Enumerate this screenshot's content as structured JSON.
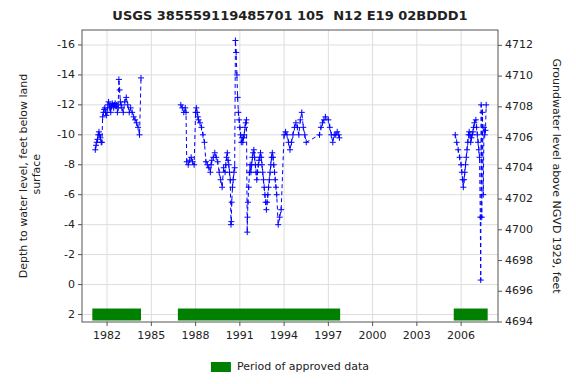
{
  "chart_data": {
    "type": "line",
    "title": "USGS 385559119485701 105  N12 E19 02BDDD1",
    "y_label": "Depth to water level, feet below land\n surface",
    "y2_label": "Groundwater level above NGVD 1929, feet",
    "xlim": [
      1980.3,
      2008.5
    ],
    "xticks": [
      1982,
      1985,
      1988,
      1991,
      1994,
      1997,
      2000,
      2003,
      2006
    ],
    "ylim": [
      2.5,
      -17.0
    ],
    "yticks": [
      2,
      0,
      -2,
      -4,
      -6,
      -8,
      -10,
      -12,
      -14,
      -16
    ],
    "y2lim": [
      4694.0,
      4713.0
    ],
    "y2ticks": [
      4694,
      4696,
      4698,
      4700,
      4702,
      4704,
      4706,
      4708,
      4710,
      4712
    ],
    "grid": true,
    "legend": "bottom",
    "x": [
      1981.2,
      1981.25,
      1981.3,
      1981.35,
      1981.4,
      1981.45,
      1981.5,
      1981.55,
      1981.6,
      1981.65,
      1981.7,
      1981.75,
      1981.8,
      1981.85,
      1981.9,
      1981.95,
      1982.0,
      1982.05,
      1982.1,
      1982.15,
      1982.2,
      1982.25,
      1982.3,
      1982.35,
      1982.4,
      1982.45,
      1982.5,
      1982.55,
      1982.6,
      1982.65,
      1982.7,
      1982.75,
      1982.8,
      1982.85,
      1982.9,
      1982.95,
      1983.0,
      1983.1,
      1983.2,
      1983.3,
      1983.4,
      1983.5,
      1983.6,
      1983.7,
      1983.8,
      1983.9,
      1984.0,
      1984.1,
      1984.2,
      1984.3,
      null,
      1987.0,
      1987.1,
      1987.2,
      1987.3,
      1987.35,
      1987.4,
      1987.5,
      1987.6,
      1987.7,
      1987.8,
      1987.9,
      1988.0,
      1988.05,
      1988.1,
      1988.15,
      1988.2,
      1988.3,
      1988.4,
      1988.5,
      1988.6,
      1988.7,
      1988.8,
      1988.9,
      1989.0,
      1989.05,
      1989.1,
      1989.2,
      1989.3,
      1989.4,
      1989.5,
      1989.6,
      1989.7,
      1989.8,
      1989.9,
      1990.0,
      1990.05,
      1990.1,
      1990.15,
      1990.2,
      1990.25,
      1990.3,
      1990.35,
      1990.4,
      1990.42,
      1990.45,
      1990.5,
      1990.55,
      1990.6,
      1990.65,
      1990.7,
      1990.75,
      1990.8,
      1990.85,
      1990.9,
      1990.95,
      1991.0,
      1991.05,
      1991.1,
      1991.15,
      1991.2,
      1991.25,
      1991.3,
      1991.35,
      1991.4,
      1991.45,
      1991.5,
      1991.52,
      1991.55,
      1991.6,
      1991.65,
      1991.7,
      1991.75,
      1991.8,
      1991.85,
      1991.9,
      1991.95,
      1992.0,
      1992.05,
      1992.1,
      1992.15,
      1992.2,
      1992.25,
      1992.3,
      1992.35,
      1992.4,
      1992.45,
      1992.5,
      1992.55,
      1992.6,
      1992.65,
      1992.7,
      1992.75,
      1992.8,
      1992.85,
      1992.9,
      1992.95,
      1993.0,
      1993.05,
      1993.1,
      1993.15,
      1993.2,
      1993.25,
      1993.3,
      1993.35,
      1993.4,
      1993.45,
      1993.5,
      1993.6,
      1993.7,
      1993.8,
      1994.0,
      1994.1,
      1994.2,
      1994.3,
      1994.4,
      1994.5,
      1994.6,
      1994.7,
      1994.8,
      1994.9,
      1995.0,
      1995.1,
      1995.2,
      1995.3,
      1995.4,
      1995.5,
      1996.4,
      1996.5,
      1996.6,
      1996.7,
      1996.8,
      1997.0,
      1997.1,
      1997.2,
      1997.3,
      1997.4,
      1997.5,
      1997.6,
      1997.7,
      1997.75,
      null,
      2005.6,
      2005.7,
      2005.8,
      2005.9,
      2006.0,
      2006.05,
      2006.1,
      2006.15,
      2006.2,
      2006.25,
      2006.3,
      2006.35,
      2006.4,
      2006.45,
      2006.5,
      2006.55,
      2006.6,
      2006.65,
      2006.7,
      2006.75,
      2006.8,
      2006.85,
      2006.9,
      2007.0,
      2007.05,
      2007.1,
      2007.15,
      2007.2,
      2007.25,
      2007.3,
      2007.33,
      2007.36,
      2007.4,
      2007.45,
      2007.5,
      2007.55,
      2007.6,
      2007.65,
      2007.7
    ],
    "series": [
      {
        "type": "line",
        "color": "#0000ff",
        "line_style": "dashed",
        "marker": "plus",
        "values": [
          -9.0,
          -9.3,
          -9.5,
          -9.7,
          -10.0,
          -10.2,
          -10.0,
          -9.8,
          -9.5,
          -9.5,
          -11.2,
          -11.5,
          -11.7,
          -11.8,
          -11.5,
          -11.3,
          -11.5,
          -12.0,
          -12.2,
          -11.8,
          -12.0,
          -11.5,
          -11.9,
          -12.1,
          -12.0,
          -11.8,
          -12.0,
          -12.1,
          -11.9,
          -12.0,
          -11.5,
          -11.8,
          -13.7,
          -13.0,
          -12.2,
          -12.0,
          -11.8,
          -11.5,
          -12.2,
          -12.5,
          -12.0,
          -11.5,
          -11.8,
          -11.5,
          -11.2,
          -11.0,
          -10.8,
          -10.5,
          -10.0,
          -13.8,
          null,
          -12.0,
          -11.8,
          -11.5,
          -11.8,
          -11.5,
          -8.2,
          -8.0,
          -8.3,
          -8.5,
          -8.2,
          -8.0,
          -11.5,
          -11.8,
          -11.5,
          -11.2,
          -11.0,
          -10.8,
          -10.5,
          -10.0,
          -9.5,
          -8.2,
          -8.0,
          -7.8,
          -7.5,
          -8.0,
          -8.3,
          -8.5,
          -8.8,
          -8.5,
          -8.2,
          -7.5,
          -7.0,
          -6.5,
          -7.8,
          -7.5,
          -8.0,
          -8.5,
          -8.8,
          -8.3,
          -8.0,
          -7.5,
          -7.0,
          -4.0,
          -4.2,
          -5.5,
          -6.5,
          -7.0,
          -7.5,
          -7.8,
          -16.3,
          -15.5,
          -14.0,
          -12.5,
          -11.5,
          -11.0,
          -10.5,
          -10.0,
          -9.5,
          -9.8,
          -9.5,
          -9.8,
          -10.0,
          -10.5,
          -10.8,
          -11.0,
          -3.5,
          -4.5,
          -5.5,
          -6.5,
          -7.5,
          -8.0,
          -7.5,
          -8.0,
          -8.5,
          -8.8,
          -9.0,
          -8.5,
          -8.0,
          -7.5,
          -7.0,
          -7.5,
          -8.0,
          -8.3,
          -8.5,
          -8.8,
          -8.5,
          -8.0,
          -7.5,
          -7.0,
          -6.5,
          -6.0,
          -5.5,
          -5.0,
          -5.5,
          -6.0,
          -6.5,
          -7.0,
          -7.5,
          -8.0,
          -8.5,
          -8.8,
          -8.5,
          -8.0,
          -7.5,
          -7.0,
          -6.5,
          -6.0,
          -4.0,
          -4.5,
          -5.0,
          -10.0,
          -10.2,
          -10.0,
          -9.5,
          -9.0,
          -9.5,
          -10.0,
          -10.5,
          -10.8,
          -10.5,
          -10.0,
          -11.0,
          -11.5,
          -10.5,
          -10.0,
          -9.5,
          -10.0,
          -10.5,
          -10.8,
          -11.0,
          -11.2,
          -11.0,
          -10.5,
          -10.0,
          -9.5,
          -10.0,
          -10.0,
          -10.2,
          -10.0,
          -9.8,
          null,
          -10.0,
          -9.5,
          -9.0,
          -8.5,
          -8.0,
          -7.5,
          -7.0,
          -6.5,
          -7.0,
          -7.5,
          -8.0,
          -8.5,
          -9.0,
          -9.5,
          -10.0,
          -10.2,
          -10.0,
          -9.5,
          -9.8,
          -10.0,
          -10.2,
          -10.5,
          -10.8,
          -11.0,
          -10.5,
          -10.0,
          -9.5,
          -9.0,
          -8.5,
          -4.5,
          -0.3,
          -12.0,
          -4.5,
          -11.5,
          -6.0,
          -10.5,
          -10.0,
          -10.3,
          -12.0
        ]
      },
      {
        "type": "span",
        "name": "Period of approved data",
        "color": "#008000",
        "starts": [
          1981.0,
          1986.8,
          2005.5
        ],
        "ends": [
          1984.3,
          1997.8,
          2007.8
        ],
        "y": 2.0,
        "half_height": 0.4
      }
    ]
  }
}
